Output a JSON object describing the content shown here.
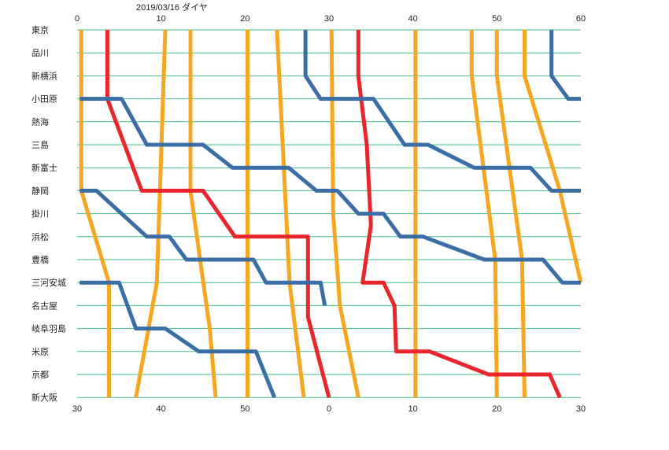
{
  "chart_data": {
    "type": "line",
    "title": "2019/03/16  ダイヤ",
    "x_top_ticks": [
      "0",
      "10",
      "20",
      "30",
      "40",
      "50",
      "60"
    ],
    "x_bottom_ticks": [
      "30",
      "40",
      "50",
      "0",
      "10",
      "20",
      "30"
    ],
    "xlim": [
      0,
      60
    ],
    "stations": [
      "東京",
      "品川",
      "新横浜",
      "小田原",
      "熱海",
      "三島",
      "新富士",
      "静岡",
      "掛川",
      "浜松",
      "豊橋",
      "三河安城",
      "名古屋",
      "岐阜羽島",
      "米原",
      "京都",
      "新大阪"
    ],
    "grid": true,
    "colors": {
      "orange": "#f5a623",
      "blue": "#3a6ea5",
      "red": "#e8262c",
      "grid": "#3fbf8a"
    },
    "series": [
      {
        "color": "orange",
        "points": [
          [
            0.5,
            0
          ],
          [
            0.5,
            7
          ],
          [
            3.8,
            11
          ],
          [
            3.8,
            16
          ]
        ]
      },
      {
        "color": "orange",
        "points": [
          [
            10.5,
            0
          ],
          [
            9.5,
            11
          ],
          [
            7,
            16
          ]
        ]
      },
      {
        "color": "orange",
        "points": [
          [
            13.5,
            0
          ],
          [
            13.5,
            7
          ],
          [
            15.8,
            13
          ],
          [
            16.5,
            16
          ]
        ]
      },
      {
        "color": "orange",
        "points": [
          [
            20.3,
            0
          ],
          [
            20.3,
            16
          ]
        ]
      },
      {
        "color": "orange",
        "points": [
          [
            23.8,
            0
          ],
          [
            25.3,
            11
          ],
          [
            27,
            16
          ]
        ]
      },
      {
        "color": "orange",
        "points": [
          [
            30.3,
            0
          ],
          [
            30.5,
            8
          ],
          [
            31.3,
            12
          ],
          [
            33.5,
            16
          ]
        ]
      },
      {
        "color": "orange",
        "points": [
          [
            40.3,
            0
          ],
          [
            40.3,
            16
          ]
        ]
      },
      {
        "color": "orange",
        "points": [
          [
            47,
            0
          ],
          [
            47,
            2
          ],
          [
            49.8,
            10
          ],
          [
            50,
            16
          ]
        ]
      },
      {
        "color": "orange",
        "points": [
          [
            50,
            0
          ],
          [
            50,
            2
          ],
          [
            53,
            10
          ],
          [
            53.3,
            16
          ]
        ]
      },
      {
        "color": "orange",
        "points": [
          [
            53.3,
            0
          ],
          [
            53.3,
            2
          ],
          [
            57.5,
            7
          ],
          [
            60,
            11
          ]
        ]
      },
      {
        "color": "red",
        "points": [
          [
            3.6,
            0
          ],
          [
            3.6,
            3
          ],
          [
            7.7,
            7
          ],
          [
            15,
            7
          ],
          [
            18.8,
            9
          ],
          [
            27.5,
            9
          ],
          [
            27.5,
            12.5
          ],
          [
            30,
            16
          ]
        ]
      },
      {
        "color": "red",
        "points": [
          [
            33.5,
            0
          ],
          [
            33.5,
            2
          ],
          [
            34.5,
            5
          ],
          [
            35,
            8.5
          ],
          [
            34,
            11
          ],
          [
            36.5,
            11
          ],
          [
            37.8,
            12
          ],
          [
            38,
            14
          ],
          [
            39.5,
            14
          ],
          [
            42,
            14
          ],
          [
            49,
            15
          ],
          [
            56.3,
            15
          ],
          [
            57.5,
            16
          ]
        ]
      },
      {
        "color": "blue",
        "points": [
          [
            0.3,
            3
          ],
          [
            3.7,
            3
          ],
          [
            5.3,
            3
          ],
          [
            8.3,
            5
          ],
          [
            15,
            5
          ],
          [
            18.5,
            6
          ],
          [
            25.2,
            6
          ],
          [
            28.5,
            7
          ],
          [
            31,
            7
          ],
          [
            33.5,
            8
          ],
          [
            36.5,
            8
          ],
          [
            38.5,
            9
          ],
          [
            41.2,
            9
          ],
          [
            48.5,
            10
          ],
          [
            55.5,
            10
          ],
          [
            57.8,
            11
          ],
          [
            60,
            11
          ]
        ]
      },
      {
        "color": "blue",
        "points": [
          [
            0.3,
            7
          ],
          [
            2.3,
            7
          ],
          [
            8.3,
            9
          ],
          [
            11,
            9
          ],
          [
            13,
            10
          ],
          [
            21,
            10
          ],
          [
            22.5,
            11
          ],
          [
            29,
            11
          ],
          [
            29.5,
            12
          ]
        ]
      },
      {
        "color": "blue",
        "points": [
          [
            0.3,
            11
          ],
          [
            5,
            11
          ],
          [
            7,
            13
          ],
          [
            10.5,
            13
          ],
          [
            14.5,
            14
          ],
          [
            21.3,
            14
          ],
          [
            23.5,
            16
          ]
        ]
      },
      {
        "color": "blue",
        "points": [
          [
            27.2,
            0
          ],
          [
            27.2,
            2
          ],
          [
            29,
            3
          ],
          [
            33.5,
            3
          ],
          [
            35.3,
            3
          ],
          [
            39,
            5
          ],
          [
            41.8,
            5
          ],
          [
            47.3,
            6
          ],
          [
            54,
            6
          ],
          [
            56.5,
            7
          ],
          [
            60,
            7
          ]
        ]
      },
      {
        "color": "blue",
        "points": [
          [
            56.5,
            0
          ],
          [
            56.5,
            2
          ],
          [
            58.5,
            3
          ],
          [
            60,
            3
          ]
        ]
      }
    ]
  }
}
